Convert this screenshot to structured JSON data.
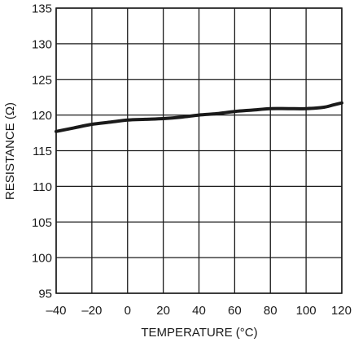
{
  "chart_data": {
    "type": "line",
    "title": "",
    "xlabel": "TEMPERATURE (°C)",
    "ylabel": "RESISTANCE (Ω)",
    "xlim": [
      -40,
      120
    ],
    "ylim": [
      95,
      135
    ],
    "xticks": [
      -40,
      -20,
      0,
      20,
      40,
      60,
      80,
      100,
      120
    ],
    "yticks": [
      95,
      100,
      105,
      110,
      115,
      120,
      125,
      130,
      135
    ],
    "xtick_labels": [
      "–40",
      "–20",
      "0",
      "20",
      "40",
      "60",
      "80",
      "100",
      "120"
    ],
    "ytick_labels": [
      "95",
      "100",
      "105",
      "110",
      "115",
      "120",
      "125",
      "130",
      "135"
    ],
    "grid": true,
    "colors": {
      "line": "#1a1a1a",
      "grid": "#1a1a1a",
      "frame": "#1a1a1a"
    },
    "series": [
      {
        "x": [
          -40,
          -30,
          -20,
          -10,
          0,
          10,
          20,
          30,
          40,
          50,
          60,
          70,
          80,
          90,
          100,
          110,
          115,
          120
        ],
        "y": [
          117.7,
          118.2,
          118.7,
          119.0,
          119.3,
          119.4,
          119.5,
          119.7,
          120.0,
          120.2,
          120.5,
          120.7,
          120.9,
          120.9,
          120.9,
          121.1,
          121.4,
          121.7
        ]
      }
    ]
  }
}
